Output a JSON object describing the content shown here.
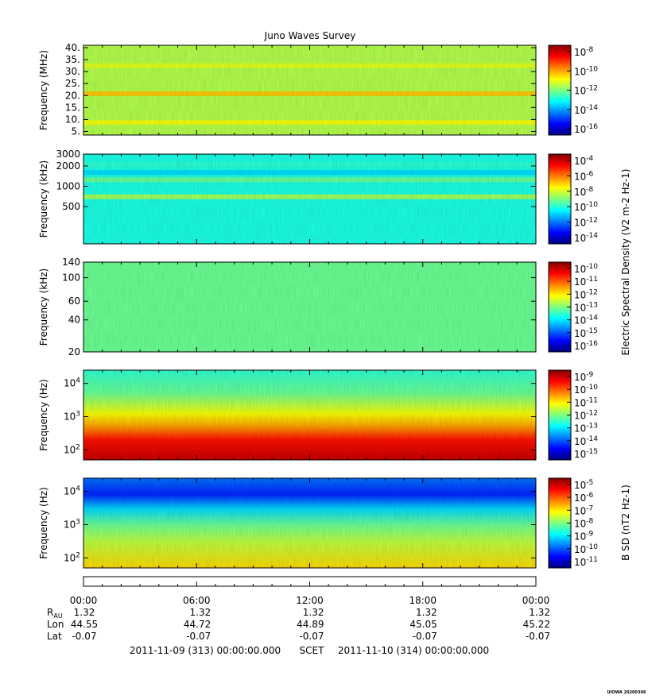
{
  "chart_data": {
    "type": "heatmap",
    "title": "Juno Waves Survey",
    "credit": "UIOWA 20200306",
    "panels": [
      {
        "id": "hfr-mhz",
        "ylabel": "Frequency (MHz)",
        "yscale": "linear",
        "ylim": [
          3.5,
          41
        ],
        "yticks": [
          {
            "value": 40,
            "label": "40."
          },
          {
            "value": 35,
            "label": "35."
          },
          {
            "value": 30,
            "label": "30."
          },
          {
            "value": 25,
            "label": "25."
          },
          {
            "value": 20,
            "label": "20."
          },
          {
            "value": 15,
            "label": "15."
          },
          {
            "value": 10,
            "label": "10."
          },
          {
            "value": 5,
            "label": "5."
          }
        ],
        "background_level": 0.55,
        "bands": [
          {
            "freq": 20.8,
            "level": 0.68
          },
          {
            "freq": 32.5,
            "level": 0.6
          },
          {
            "freq": 8.7,
            "level": 0.62
          }
        ],
        "colorbar_label": "",
        "colorbar_ticks": [
          "-8",
          "-10",
          "-12",
          "-14",
          "-16"
        ]
      },
      {
        "id": "hfr-khz",
        "ylabel": "Frequency (kHz)",
        "yscale": "log",
        "ylim": [
          140,
          3000
        ],
        "yticks": [
          {
            "value": 3000,
            "label": "3000"
          },
          {
            "value": 2000,
            "label": "2000"
          },
          {
            "value": 1000,
            "label": "1000"
          },
          {
            "value": 500,
            "label": "500"
          }
        ],
        "background_level": 0.4,
        "bands": [
          {
            "freq": 2100,
            "level": 0.42
          },
          {
            "freq": 1600,
            "level": 0.34
          },
          {
            "freq": 1250,
            "level": 0.48
          },
          {
            "freq": 700,
            "level": 0.55
          }
        ],
        "colorbar_label": "",
        "colorbar_ticks": [
          "-4",
          "-6",
          "-8",
          "-10",
          "-12",
          "-14"
        ]
      },
      {
        "id": "lfr-khz",
        "ylabel": "Frequency (kHz)",
        "yscale": "log",
        "ylim": [
          20,
          140
        ],
        "yticks": [
          {
            "value": 140,
            "label": "140"
          },
          {
            "value": 100,
            "label": "100"
          },
          {
            "value": 60,
            "label": "60"
          },
          {
            "value": 40,
            "label": "40"
          },
          {
            "value": 20,
            "label": "20"
          }
        ],
        "background_level": 0.48,
        "bands": [],
        "colorbar_label": "Electric Spectral Density (V2 m-2 Hz-1)",
        "colorbar_ticks": [
          "-10",
          "-11",
          "-12",
          "-13",
          "-14",
          "-15",
          "-16"
        ]
      },
      {
        "id": "lfr-hz-e",
        "ylabel": "Frequency (Hz)",
        "yscale": "log",
        "ylim": [
          50,
          25000
        ],
        "yticks": [
          {
            "value": 10000,
            "label": "10",
            "exp": "4"
          },
          {
            "value": 1000,
            "label": "10",
            "exp": "3"
          },
          {
            "value": 100,
            "label": "10",
            "exp": "2"
          }
        ],
        "gradient": [
          {
            "freq": 25000,
            "level": 0.42
          },
          {
            "freq": 5000,
            "level": 0.48
          },
          {
            "freq": 1200,
            "level": 0.62
          },
          {
            "freq": 500,
            "level": 0.72
          },
          {
            "freq": 200,
            "level": 0.86
          },
          {
            "freq": 50,
            "level": 0.93
          }
        ],
        "colorbar_label": "",
        "colorbar_ticks": [
          "-9",
          "-10",
          "-11",
          "-12",
          "-13",
          "-14",
          "-15"
        ]
      },
      {
        "id": "lfr-hz-b",
        "ylabel": "Frequency (Hz)",
        "yscale": "log",
        "ylim": [
          50,
          25000
        ],
        "yticks": [
          {
            "value": 10000,
            "label": "10",
            "exp": "4"
          },
          {
            "value": 1000,
            "label": "10",
            "exp": "3"
          },
          {
            "value": 100,
            "label": "10",
            "exp": "2"
          }
        ],
        "gradient": [
          {
            "freq": 25000,
            "level": 0.24
          },
          {
            "freq": 8000,
            "level": 0.16
          },
          {
            "freq": 3000,
            "level": 0.34
          },
          {
            "freq": 1000,
            "level": 0.48
          },
          {
            "freq": 300,
            "level": 0.56
          },
          {
            "freq": 50,
            "level": 0.66
          }
        ],
        "colorbar_label": "B SD (nT2 Hz-1)",
        "colorbar_ticks": [
          "-5",
          "-6",
          "-7",
          "-8",
          "-9",
          "-10",
          "-11"
        ]
      }
    ],
    "colorbar_base": "10",
    "time_axis": {
      "ticks": [
        "00:00",
        "06:00",
        "12:00",
        "18:00",
        "00:00"
      ],
      "ephemeris": [
        {
          "label": "R",
          "sub": "AU",
          "values": [
            "1.32",
            "1.32",
            "1.32",
            "1.32",
            "1.32"
          ]
        },
        {
          "label": "Lon",
          "values": [
            "44.55",
            "44.72",
            "44.89",
            "45.05",
            "45.22"
          ]
        },
        {
          "label": "Lat",
          "values": [
            "-0.07",
            "-0.07",
            "-0.07",
            "-0.07",
            "-0.07"
          ]
        }
      ],
      "start": "2011-11-09 (313) 00:00:00.000",
      "scet": "SCET",
      "end": "2011-11-10 (314) 00:00:00.000"
    }
  }
}
